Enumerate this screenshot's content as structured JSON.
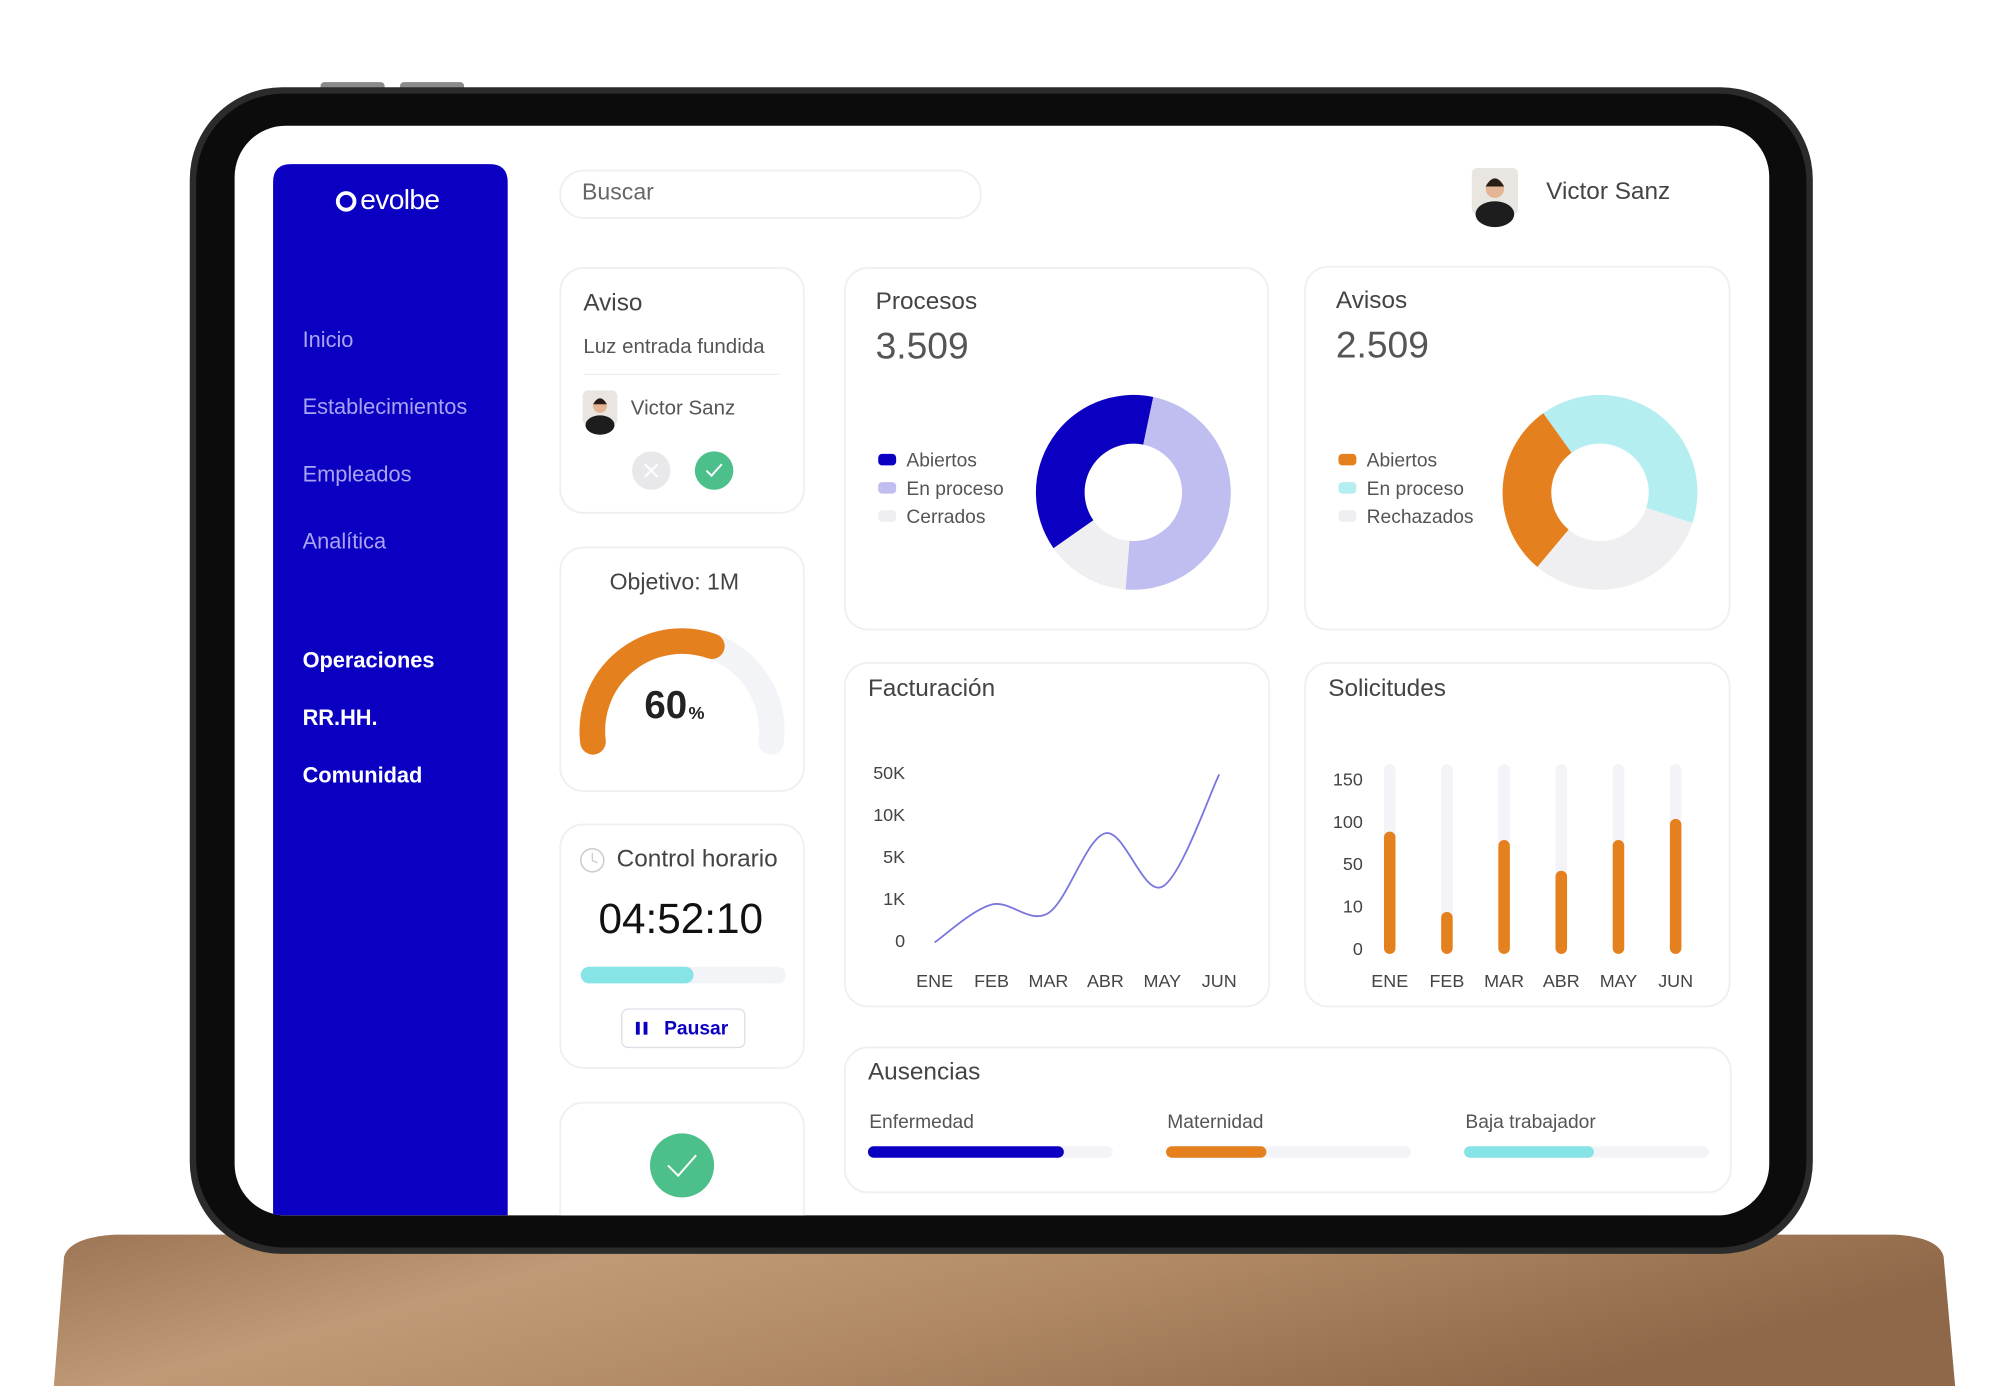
{
  "sidebar": {
    "logo": "evolbe",
    "menu": [
      "Inicio",
      "Establecimientos",
      "Empleados",
      "Analítica"
    ],
    "sections": [
      "Operaciones",
      "RR.HH.",
      "Comunidad"
    ]
  },
  "search": {
    "placeholder": "Buscar"
  },
  "user": {
    "name": "Victor Sanz"
  },
  "aviso": {
    "title": "Aviso",
    "message": "Luz entrada fundida",
    "author": "Victor Sanz"
  },
  "objetivo": {
    "title": "Objetivo: 1M",
    "value": 60,
    "value_label": "60",
    "unit": "%",
    "lim": [
      0,
      100
    ],
    "color": "#e5801f"
  },
  "control_horario": {
    "title": "Control horario",
    "time": "04:52:10",
    "progress": 55,
    "lim": [
      0,
      100
    ],
    "color": "#86e3e6",
    "button": "Pausar"
  },
  "chart_data": [
    {
      "type": "pie",
      "title": "Procesos",
      "total": "3.509",
      "categories": [
        "Abiertos",
        "En proceso",
        "Cerrados"
      ],
      "values": [
        38,
        48,
        14
      ],
      "colors": [
        "#0b00c2",
        "#c0bdf0",
        "#efeff2"
      ]
    },
    {
      "type": "pie",
      "title": "Avisos",
      "total": "2.509",
      "categories": [
        "Abiertos",
        "En proceso",
        "Rechazados"
      ],
      "values": [
        29,
        40,
        31
      ],
      "colors": [
        "#e5801f",
        "#b4eef0",
        "#efeff2"
      ]
    },
    {
      "type": "line",
      "title": "Facturación",
      "categories": [
        "ENE",
        "FEB",
        "MAR",
        "ABR",
        "MAY",
        "JUN"
      ],
      "values": [
        0,
        900,
        700,
        8000,
        2300,
        50000
      ],
      "color": "#7a76e0",
      "ylim": [
        0,
        50000
      ],
      "yticks": [
        0,
        {
          "value": 1000,
          "label": "1K"
        },
        {
          "value": 5000,
          "label": "5K"
        },
        {
          "value": 10000,
          "label": "10K"
        },
        {
          "value": 50000,
          "label": "50K"
        }
      ]
    },
    {
      "type": "bar",
      "title": "Solicitudes",
      "categories": [
        "ENE",
        "FEB",
        "MAR",
        "ABR",
        "MAY",
        "JUN"
      ],
      "values": [
        90,
        9,
        80,
        45,
        80,
        105
      ],
      "color": "#e5801f",
      "ylim": [
        0,
        150
      ],
      "yticks": [
        0,
        10,
        50,
        100,
        150
      ]
    },
    {
      "type": "progress",
      "title": "Ausencias",
      "categories": [
        "Enfermedad",
        "Maternidad",
        "Baja trabajador"
      ],
      "values": [
        80,
        41,
        53
      ],
      "colors": [
        "#0b00c2",
        "#e5801f",
        "#86e3e6"
      ],
      "xlim": [
        0,
        100
      ]
    }
  ]
}
